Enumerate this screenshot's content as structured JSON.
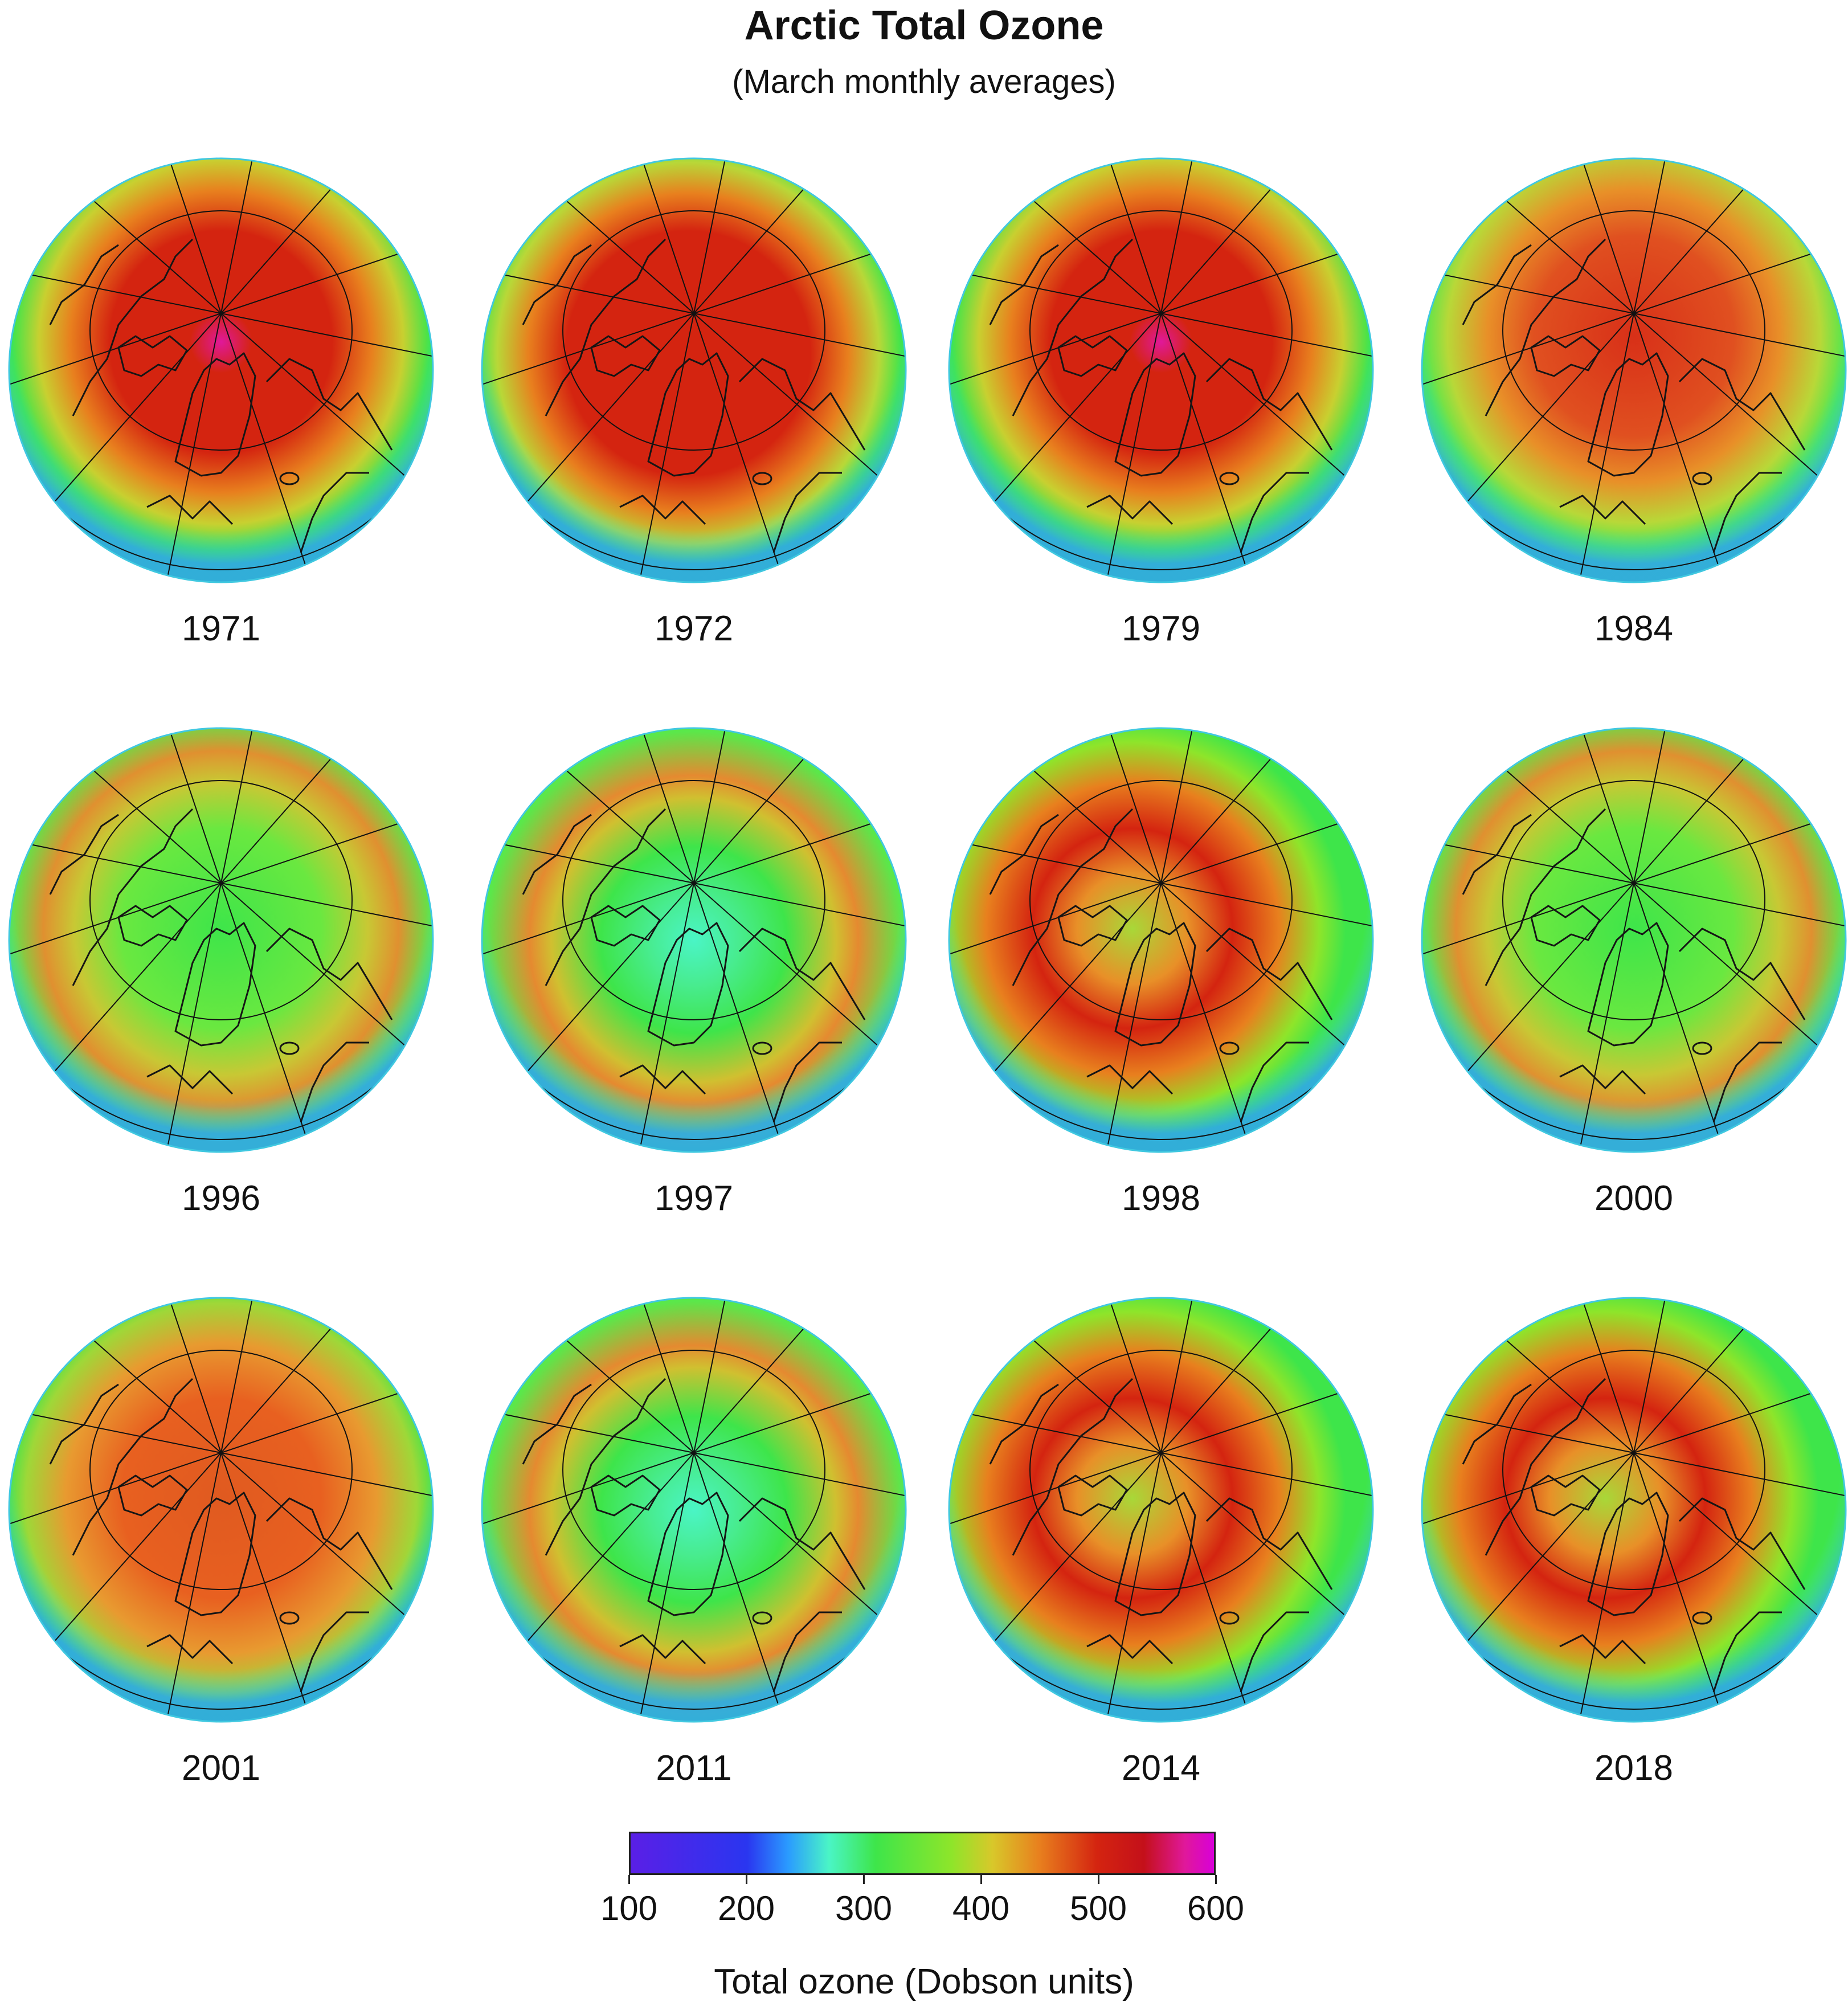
{
  "title": "Arctic Total Ozone",
  "subtitle": "(March monthly averages)",
  "maps": [
    {
      "year": "1971",
      "center_level": "very-high",
      "pattern": "high-center-peak"
    },
    {
      "year": "1972",
      "center_level": "high",
      "pattern": "high-broad"
    },
    {
      "year": "1979",
      "center_level": "very-high",
      "pattern": "high-center-peak"
    },
    {
      "year": "1984",
      "center_level": "high",
      "pattern": "high-streaky"
    },
    {
      "year": "1996",
      "center_level": "low",
      "pattern": "low-center"
    },
    {
      "year": "1997",
      "center_level": "very-low",
      "pattern": "very-low-center"
    },
    {
      "year": "1998",
      "center_level": "moderate",
      "pattern": "high-offcenter"
    },
    {
      "year": "2000",
      "center_level": "low",
      "pattern": "low-center"
    },
    {
      "year": "2001",
      "center_level": "high",
      "pattern": "high-diffuse"
    },
    {
      "year": "2011",
      "center_level": "very-low",
      "pattern": "very-low-center"
    },
    {
      "year": "2014",
      "center_level": "moderate",
      "pattern": "high-offcenter"
    },
    {
      "year": "2018",
      "center_level": "high",
      "pattern": "high-offcenter"
    }
  ],
  "colorbar": {
    "min": 100,
    "max": 600,
    "ticks": [
      "100",
      "200",
      "300",
      "400",
      "500",
      "600"
    ],
    "label": "Total ozone (Dobson units)",
    "colors": [
      "#5a1fe6",
      "#2a9bff",
      "#4af5c6",
      "#3ee54a",
      "#d8c82a",
      "#d42410",
      "#d800d8"
    ]
  }
}
